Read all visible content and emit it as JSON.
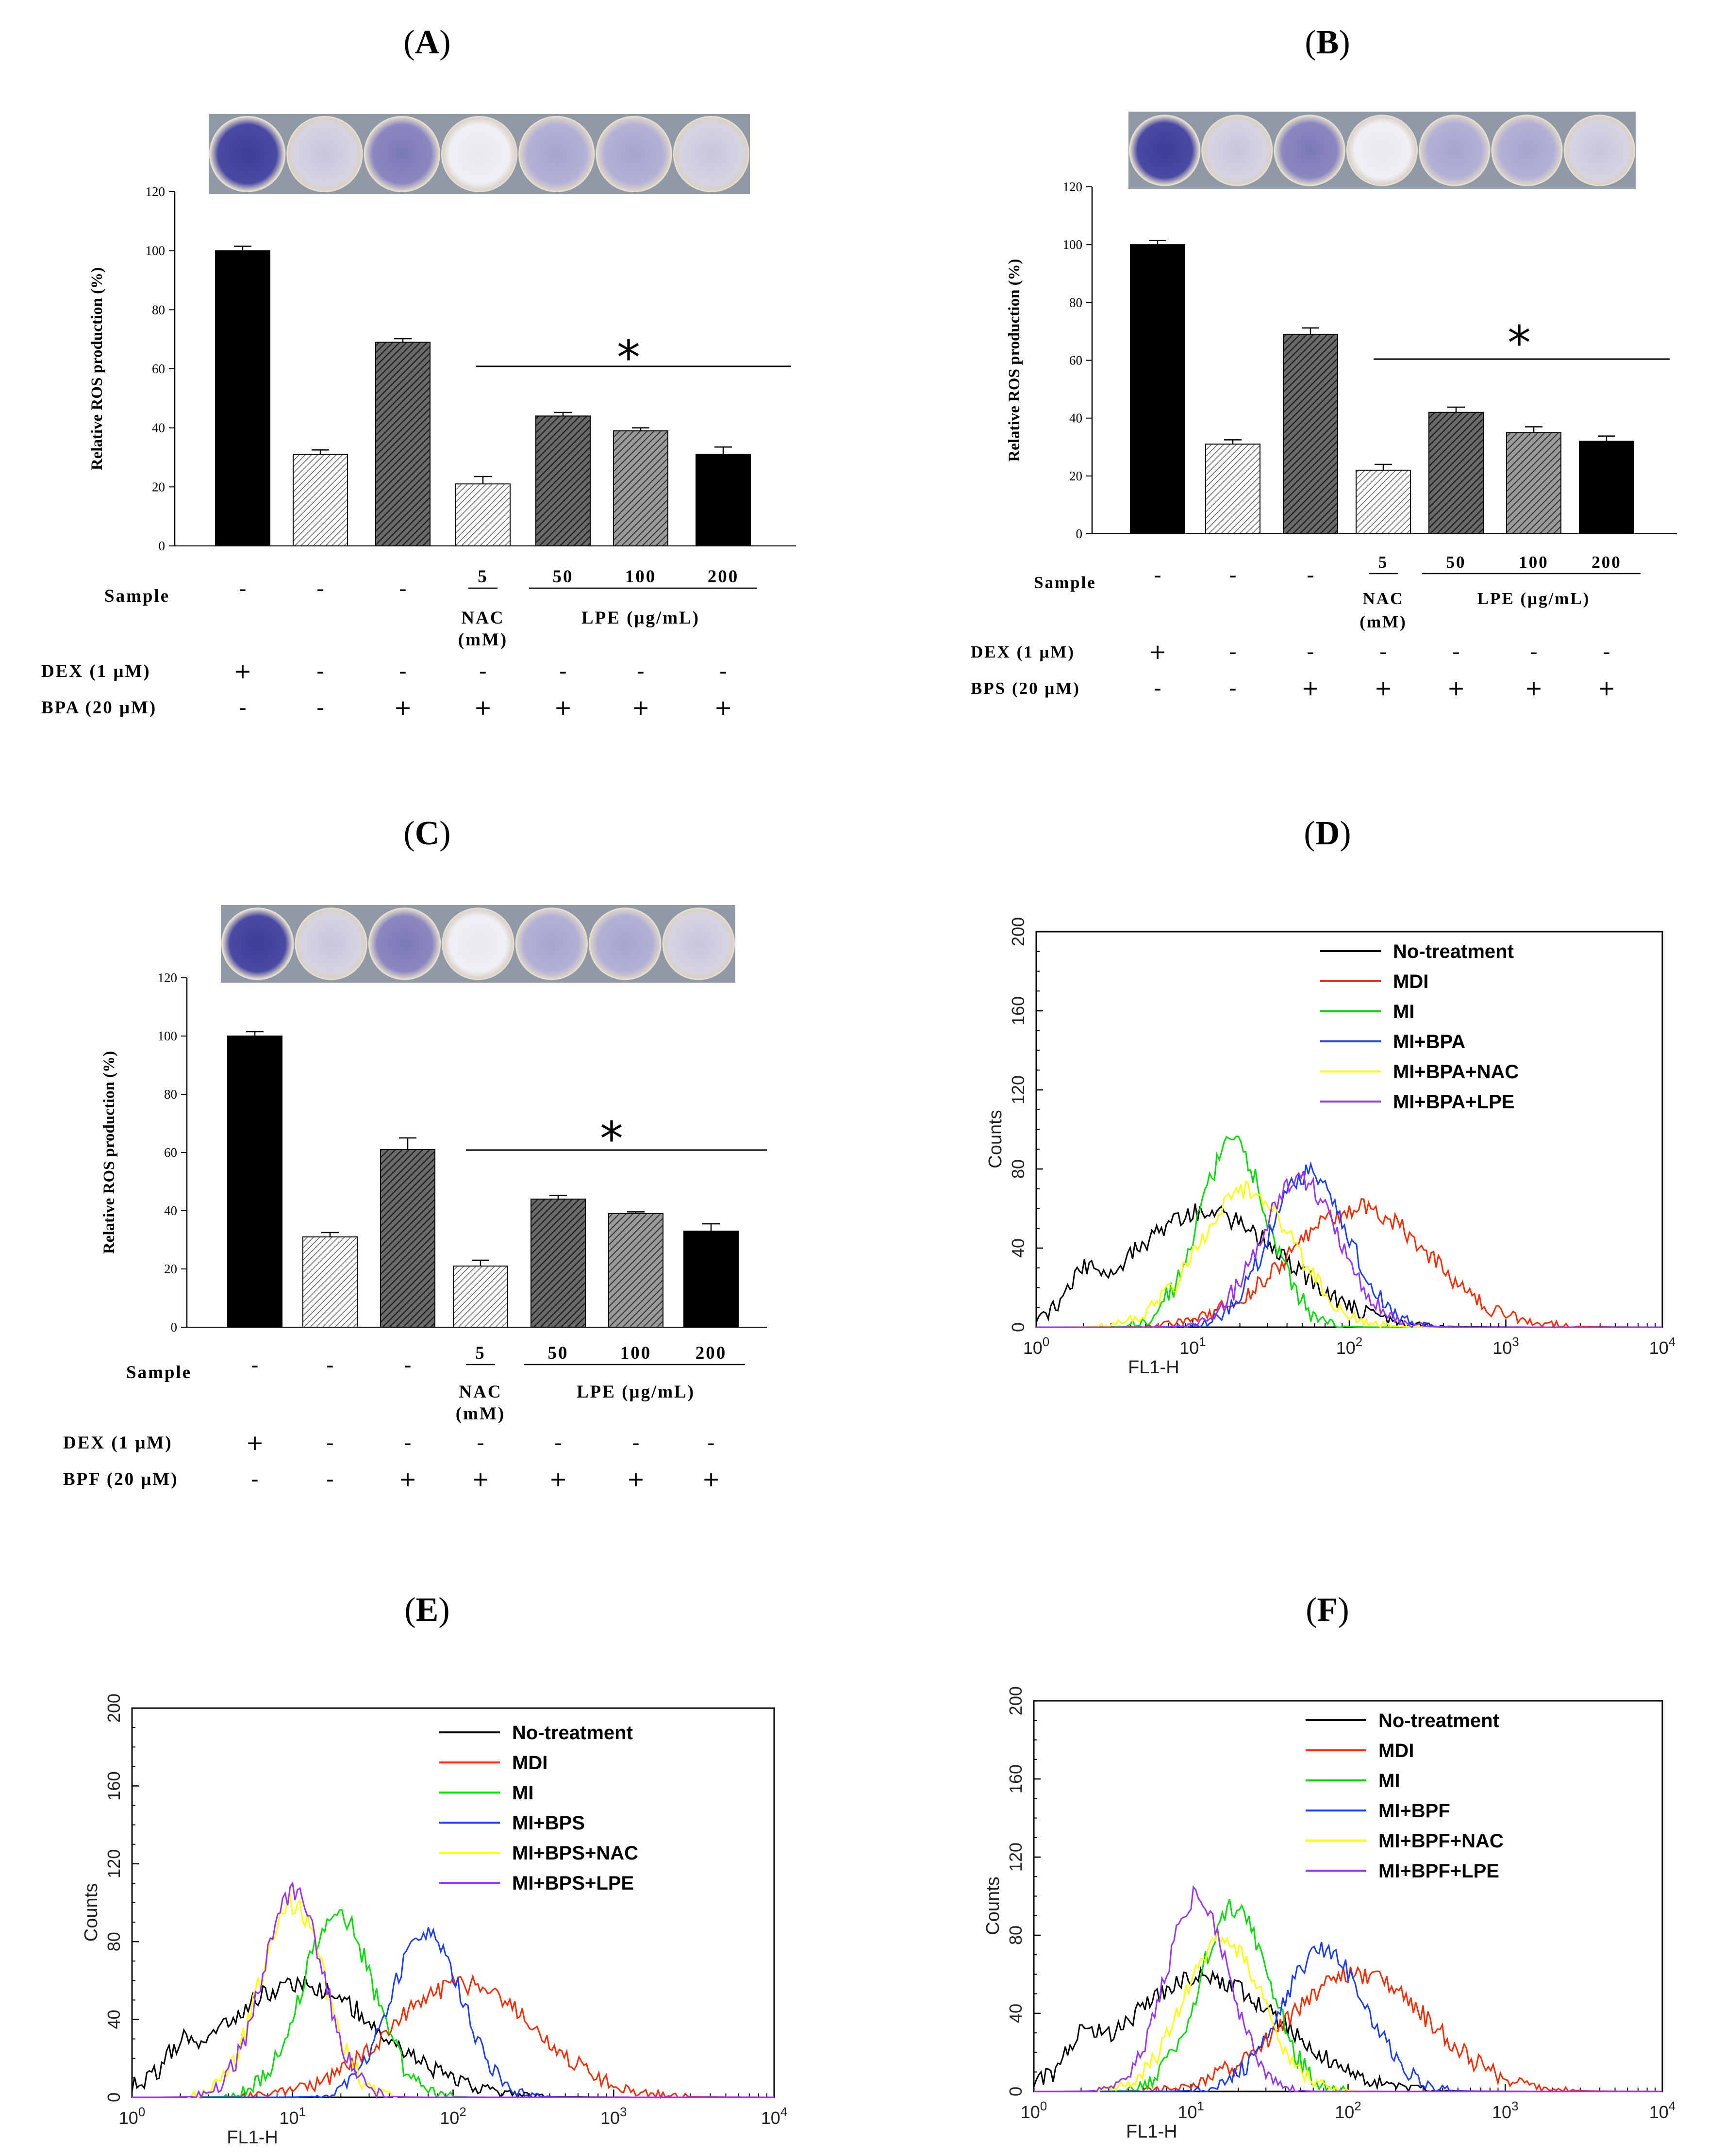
{
  "chart_data": [
    {
      "panel": "A",
      "type": "bar",
      "ylabel": "Relative ROS production  (%)",
      "ylim": [
        0,
        120
      ],
      "yticks": [
        0,
        20,
        40,
        60,
        80,
        100,
        120
      ],
      "values": [
        100,
        31,
        69,
        21,
        44,
        39,
        31
      ],
      "errors": [
        1.5,
        1.5,
        1.2,
        2.5,
        1.2,
        1.0,
        2.5
      ],
      "bar_styles": [
        "solid-black",
        "light-hatch",
        "dark-hatch",
        "light-hatch",
        "dark-hatch",
        "grey-hatch",
        "solid-black"
      ],
      "significance": "*",
      "rows": [
        {
          "label": "Sample",
          "cells": [
            "-",
            "-",
            "-"
          ]
        },
        {
          "label": "DEX (1 μM)",
          "cells": [
            "+",
            "-",
            "-",
            "-",
            "-",
            "-",
            "-"
          ]
        },
        {
          "label": "BPA (20 μM)",
          "cells": [
            "-",
            "-",
            "+",
            "+",
            "+",
            "+",
            "+"
          ]
        }
      ],
      "nac_dose": "5",
      "nac_label": "NAC",
      "nac_unit": "(mM)",
      "lpe_doses": [
        "50",
        "100",
        "200"
      ],
      "lpe_label": "LPE (μg/mL)"
    },
    {
      "panel": "B",
      "type": "bar",
      "ylabel": "Relative ROS production  (%)",
      "ylim": [
        0,
        120
      ],
      "yticks": [
        0,
        20,
        40,
        60,
        80,
        100,
        120
      ],
      "values": [
        100,
        31,
        69,
        22,
        42,
        35,
        32
      ],
      "errors": [
        1.5,
        1.5,
        2.2,
        2.0,
        1.8,
        2.0,
        1.8
      ],
      "bar_styles": [
        "solid-black",
        "light-hatch",
        "dark-hatch",
        "light-hatch",
        "dark-hatch",
        "grey-hatch",
        "solid-black"
      ],
      "significance": "*",
      "rows": [
        {
          "label": "Sample",
          "cells": [
            "-",
            "-",
            "-"
          ]
        },
        {
          "label": "DEX (1 μM)",
          "cells": [
            "+",
            "-",
            "-",
            "-",
            "-",
            "-",
            "-"
          ]
        },
        {
          "label": "BPS (20 μM)",
          "cells": [
            "-",
            "-",
            "+",
            "+",
            "+",
            "+",
            "+"
          ]
        }
      ],
      "nac_dose": "5",
      "nac_label": "NAC",
      "nac_unit": "(mM)",
      "lpe_doses": [
        "50",
        "100",
        "200"
      ],
      "lpe_label": "LPE (μg/mL)"
    },
    {
      "panel": "C",
      "type": "bar",
      "ylabel": "Relative ROS production  (%)",
      "ylim": [
        0,
        120
      ],
      "yticks": [
        0,
        20,
        40,
        60,
        80,
        100,
        120
      ],
      "values": [
        100,
        31,
        61,
        21,
        44,
        39,
        33
      ],
      "errors": [
        1.5,
        1.5,
        4.0,
        2.0,
        1.2,
        0.6,
        2.5
      ],
      "bar_styles": [
        "solid-black",
        "light-hatch",
        "dark-hatch",
        "light-hatch",
        "dark-hatch",
        "grey-hatch",
        "solid-black"
      ],
      "significance": "*",
      "rows": [
        {
          "label": "Sample",
          "cells": [
            "-",
            "-",
            "-"
          ]
        },
        {
          "label": "DEX (1 μM)",
          "cells": [
            "+",
            "-",
            "-",
            "-",
            "-",
            "-",
            "-"
          ]
        },
        {
          "label": "BPF (20 μM)",
          "cells": [
            "-",
            "-",
            "+",
            "+",
            "+",
            "+",
            "+"
          ]
        }
      ],
      "nac_dose": "5",
      "nac_label": "NAC",
      "nac_unit": "(mM)",
      "lpe_doses": [
        "50",
        "100",
        "200"
      ],
      "lpe_label": "LPE (μg/mL)"
    },
    {
      "panel": "D",
      "type": "line",
      "xlabel": "FL1-H",
      "ylabel": "Counts",
      "xscale": "log",
      "xlim": [
        1,
        10000
      ],
      "ylim": [
        0,
        200
      ],
      "xtick_bases": [
        "10",
        "10",
        "10",
        "10",
        "10"
      ],
      "xtick_exponents": [
        "0",
        "1",
        "2",
        "3",
        "4"
      ],
      "yticks": [
        0,
        40,
        80,
        120,
        160,
        200
      ],
      "legend_position": "top-right",
      "series": [
        {
          "name": "No-treatment",
          "color": "#000000",
          "peak_x": 12,
          "peak_y": 58,
          "sigma": 0.5,
          "tail": 30,
          "noise": 5
        },
        {
          "name": "MDI",
          "color": "#ff2a00",
          "peak_x": 115,
          "peak_y": 60,
          "sigma": 0.45,
          "noise": 5
        },
        {
          "name": "MI",
          "color": "#00dd00",
          "peak_x": 18,
          "peak_y": 92,
          "sigma": 0.22,
          "noise": 6
        },
        {
          "name": "MI+BPA",
          "color": "#1a3dff",
          "peak_x": 55,
          "peak_y": 78,
          "sigma": 0.25,
          "noise": 5
        },
        {
          "name": "MI+BPA+NAC",
          "color": "#ffff00",
          "peak_x": 22,
          "peak_y": 70,
          "sigma": 0.3,
          "noise": 5
        },
        {
          "name": "MI+BPA+LPE",
          "color": "#9933ff",
          "peak_x": 48,
          "peak_y": 75,
          "sigma": 0.25,
          "noise": 5
        }
      ]
    },
    {
      "panel": "E",
      "type": "line",
      "xlabel": "FL1-H",
      "ylabel": "Counts",
      "xscale": "log",
      "xlim": [
        1,
        10000
      ],
      "ylim": [
        0,
        200
      ],
      "xtick_bases": [
        "10",
        "10",
        "10",
        "10",
        "10"
      ],
      "xtick_exponents": [
        "0",
        "1",
        "2",
        "3",
        "4"
      ],
      "yticks": [
        0,
        40,
        80,
        120,
        160,
        200
      ],
      "legend_position": "top-right",
      "series": [
        {
          "name": "No-treatment",
          "color": "#000000",
          "peak_x": 11,
          "peak_y": 58,
          "sigma": 0.5,
          "tail": 30,
          "noise": 5
        },
        {
          "name": "MDI",
          "color": "#ff2a00",
          "peak_x": 115,
          "peak_y": 58,
          "sigma": 0.45,
          "noise": 5
        },
        {
          "name": "MI",
          "color": "#00dd00",
          "peak_x": 19,
          "peak_y": 95,
          "sigma": 0.22,
          "noise": 6
        },
        {
          "name": "MI+BPS",
          "color": "#1a3dff",
          "peak_x": 68,
          "peak_y": 85,
          "sigma": 0.22,
          "noise": 5
        },
        {
          "name": "MI+BPS+NAC",
          "color": "#ffff00",
          "peak_x": 10,
          "peak_y": 100,
          "sigma": 0.2,
          "noise": 6
        },
        {
          "name": "MI+BPS+LPE",
          "color": "#9933ff",
          "peak_x": 10,
          "peak_y": 105,
          "sigma": 0.19,
          "noise": 6
        }
      ]
    },
    {
      "panel": "F",
      "type": "line",
      "xlabel": "FL1-H",
      "ylabel": "Counts",
      "xscale": "log",
      "xlim": [
        1,
        10000
      ],
      "ylim": [
        0,
        200
      ],
      "xtick_bases": [
        "10",
        "10",
        "10",
        "10",
        "10"
      ],
      "xtick_exponents": [
        "0",
        "1",
        "2",
        "3",
        "4"
      ],
      "yticks": [
        0,
        40,
        80,
        120,
        160,
        200
      ],
      "legend_position": "top-right",
      "series": [
        {
          "name": "No-treatment",
          "color": "#000000",
          "peak_x": 12,
          "peak_y": 58,
          "sigma": 0.5,
          "tail": 30,
          "noise": 5
        },
        {
          "name": "MDI",
          "color": "#ff2a00",
          "peak_x": 115,
          "peak_y": 60,
          "sigma": 0.45,
          "noise": 5
        },
        {
          "name": "MI",
          "color": "#00dd00",
          "peak_x": 19,
          "peak_y": 95,
          "sigma": 0.22,
          "noise": 6
        },
        {
          "name": "MI+BPF",
          "color": "#1a3dff",
          "peak_x": 70,
          "peak_y": 72,
          "sigma": 0.27,
          "noise": 5
        },
        {
          "name": "MI+BPF+NAC",
          "color": "#ffff00",
          "peak_x": 16,
          "peak_y": 78,
          "sigma": 0.25,
          "noise": 5
        },
        {
          "name": "MI+BPF+LPE",
          "color": "#9933ff",
          "peak_x": 11,
          "peak_y": 100,
          "sigma": 0.2,
          "noise": 6
        }
      ]
    }
  ],
  "wells": [
    {
      "panel": "A",
      "wells": [
        "dark",
        "light",
        "mid",
        "clear",
        "faint",
        "faint",
        "light"
      ]
    },
    {
      "panel": "B",
      "wells": [
        "dark",
        "light",
        "mid",
        "clear",
        "faint",
        "faint",
        "light"
      ]
    },
    {
      "panel": "C",
      "wells": [
        "dark",
        "light",
        "mid",
        "clear",
        "faint",
        "faint",
        "light"
      ]
    }
  ]
}
